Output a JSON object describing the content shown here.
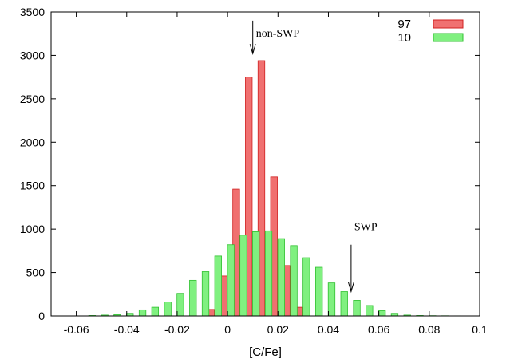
{
  "chart_data": {
    "type": "bar",
    "title": "",
    "xlabel": "[C/Fe]",
    "ylabel": "",
    "xlim": [
      -0.07,
      0.1
    ],
    "ylim": [
      0,
      3500
    ],
    "xticks": [
      -0.06,
      -0.04,
      -0.02,
      0,
      0.02,
      0.04,
      0.06,
      0.08,
      0.1
    ],
    "xtick_labels": [
      "-0.06",
      "-0.04",
      "-0.02",
      "0",
      "0.02",
      "0.04",
      "0.06",
      "0.08",
      "0.1"
    ],
    "yticks": [
      0,
      500,
      1000,
      1500,
      2000,
      2500,
      3000,
      3500
    ],
    "ytick_labels": [
      "0",
      "500",
      "1000",
      "1500",
      "2000",
      "2500",
      "3000",
      "3500"
    ],
    "grid": false,
    "legend_position": "top-right",
    "series": [
      {
        "name": "97",
        "color": "#f07070",
        "border": "#d02020",
        "x": [
          -0.005,
          0.0,
          0.005,
          0.01,
          0.015,
          0.02,
          0.025,
          0.03
        ],
        "values": [
          75,
          460,
          1460,
          2750,
          2940,
          1600,
          580,
          100
        ]
      },
      {
        "name": "10",
        "color": "#80f080",
        "border": "#30c030",
        "x": [
          -0.055,
          -0.05,
          -0.045,
          -0.04,
          -0.035,
          -0.03,
          -0.025,
          -0.02,
          -0.015,
          -0.01,
          -0.005,
          0.0,
          0.005,
          0.01,
          0.015,
          0.02,
          0.025,
          0.03,
          0.035,
          0.04,
          0.045,
          0.05,
          0.055,
          0.06,
          0.065,
          0.07,
          0.075,
          0.08,
          0.085,
          0.09
        ],
        "values": [
          5,
          10,
          15,
          30,
          70,
          100,
          160,
          260,
          410,
          510,
          690,
          820,
          930,
          970,
          980,
          890,
          810,
          670,
          560,
          380,
          280,
          180,
          120,
          60,
          30,
          10,
          5,
          3,
          2,
          1
        ]
      }
    ],
    "annotations": [
      {
        "text": "non-SWP",
        "x": 0.01,
        "y_from": 3400,
        "y_to": 3020
      },
      {
        "text": "SWP",
        "x": 0.049,
        "y_from": 820,
        "y_to": 280
      }
    ]
  }
}
